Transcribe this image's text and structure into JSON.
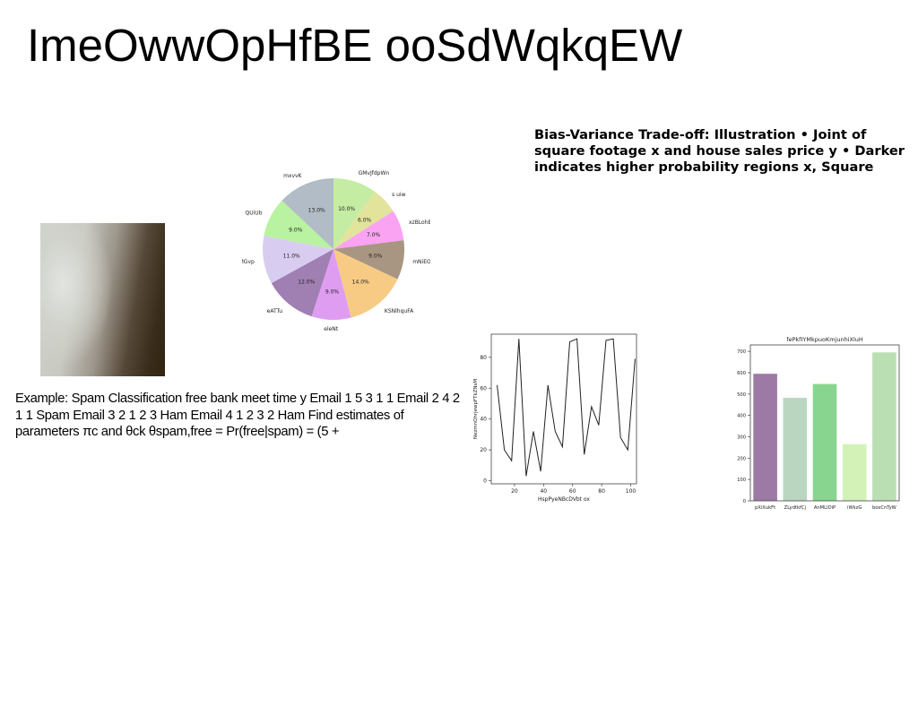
{
  "page": {
    "title": "ImeOwwOpHfBE ooSdWqkqEW",
    "bias_text": "Bias-Variance Trade-off: Illustration • Joint of square footage x and house sales price y • Darker indicates higher probability regions x, Square",
    "example_text": "Example: Spam Classification free bank meet time y Email 1 5 3 1 1 Email 2 4 2 1 1 Spam Email 3 2 1 2 3 Ham Email 4 1 2 3 2 Ham Find estimates of parameters πc and θck θspam,free = Pr(free|spam) = (5 +"
  },
  "chart_data": [
    {
      "type": "pie",
      "title": "",
      "labels": [
        "GMvJfdpWn",
        "s uiw",
        "xzBLohBSz",
        "mNiEOhZ",
        "KSNlhquFA",
        "eleNt",
        "eATTu",
        "cMGvp",
        "QUiUb",
        "mxvvK"
      ],
      "values": [
        10.0,
        6.0,
        7.0,
        9.0,
        14.0,
        9.0,
        12.0,
        11.0,
        9.0,
        13.0
      ],
      "value_labels": [
        "10.0%",
        "6.0%",
        "7.0%",
        "9.0%",
        "14.0%",
        "9.0%",
        "12.0%",
        "11.0%",
        "9.0%",
        "13.0%"
      ],
      "colors": [
        "#c5eca3",
        "#e1e49a",
        "#f9a3f2",
        "#a99682",
        "#f7cb84",
        "#df9df2",
        "#a07fb3",
        "#d8cdf1",
        "#b9f2a0",
        "#b1bcc7"
      ]
    },
    {
      "type": "line",
      "title": "",
      "xlabel": "HspPyeNBcDVbt ox",
      "ylabel": "NezmnQhrjewpFTkZNsM",
      "xlim": [
        4,
        104
      ],
      "ylim": [
        -2,
        95
      ],
      "xticks": [
        20,
        40,
        60,
        80,
        100
      ],
      "yticks": [
        0,
        20,
        40,
        60,
        80
      ],
      "x": [
        8,
        13,
        18,
        23,
        28,
        33,
        38,
        43,
        48,
        53,
        58,
        63,
        68,
        73,
        78,
        83,
        88,
        93,
        98,
        103
      ],
      "y": [
        62,
        20,
        13,
        92,
        3,
        32,
        6,
        62,
        32,
        22,
        90,
        92,
        17,
        48,
        36,
        91,
        92,
        28,
        20,
        79
      ],
      "color": "#222222"
    },
    {
      "type": "bar",
      "title": "fePkfIYMkpuoKmjunhiXluH",
      "categories": [
        "pXiXukFt",
        "ZLydtkfCj",
        "AnMLIDiP",
        "iWkzG",
        "boxCnTyW"
      ],
      "values": [
        595,
        482,
        547,
        265,
        695
      ],
      "ylim": [
        0,
        730
      ],
      "yticks": [
        0,
        100,
        200,
        300,
        400,
        500,
        600,
        700
      ],
      "colors": [
        "#9d7aa6",
        "#bad6c1",
        "#88d58f",
        "#d2f2b8",
        "#badfb2"
      ]
    }
  ]
}
